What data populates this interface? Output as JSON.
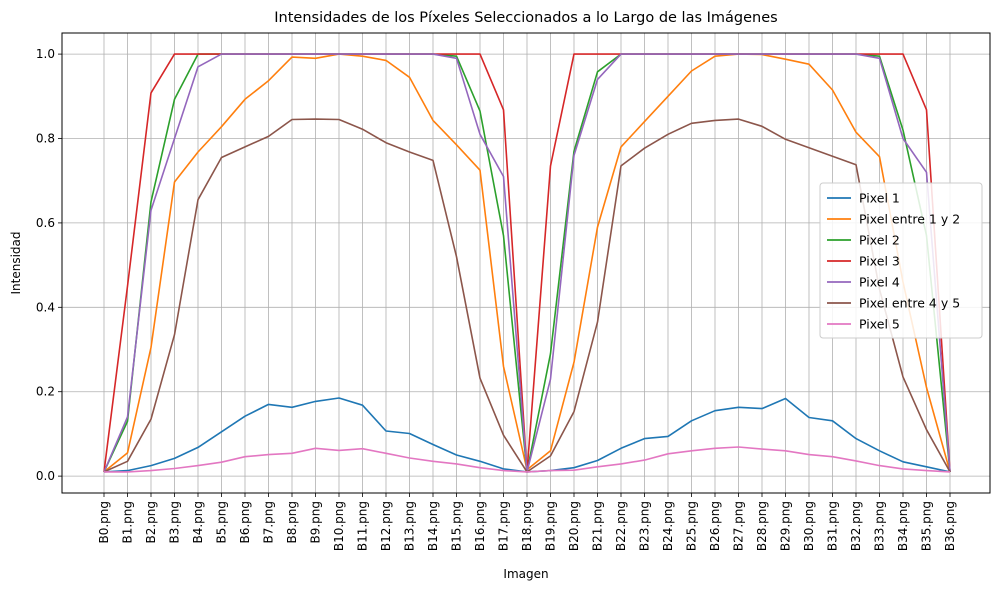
{
  "chart_data": {
    "type": "line",
    "title": "Intensidades de los Píxeles Seleccionados a lo Largo de las Imágenes",
    "xlabel": "Imagen",
    "ylabel": "Intensidad",
    "ylim": [
      -0.04,
      1.05
    ],
    "yticks": [
      "0.0",
      "0.2",
      "0.4",
      "0.6",
      "0.8",
      "1.0"
    ],
    "grid": true,
    "legend_position": "center-right",
    "categories": [
      "B0.png",
      "B1.png",
      "B2.png",
      "B3.png",
      "B4.png",
      "B5.png",
      "B6.png",
      "B7.png",
      "B8.png",
      "B9.png",
      "B10.png",
      "B11.png",
      "B12.png",
      "B13.png",
      "B14.png",
      "B15.png",
      "B16.png",
      "B17.png",
      "B18.png",
      "B19.png",
      "B20.png",
      "B21.png",
      "B22.png",
      "B23.png",
      "B24.png",
      "B25.png",
      "B26.png",
      "B27.png",
      "B28.png",
      "B29.png",
      "B30.png",
      "B31.png",
      "B32.png",
      "B33.png",
      "B34.png",
      "B35.png",
      "B36.png"
    ],
    "series": [
      {
        "name": "Pixel 1",
        "color": "#1f77b4",
        "values": [
          0.01,
          0.013,
          0.025,
          0.042,
          0.068,
          0.105,
          0.142,
          0.17,
          0.163,
          0.177,
          0.185,
          0.168,
          0.107,
          0.101,
          0.075,
          0.05,
          0.035,
          0.017,
          0.01,
          0.013,
          0.02,
          0.037,
          0.066,
          0.089,
          0.094,
          0.131,
          0.155,
          0.163,
          0.16,
          0.184,
          0.139,
          0.131,
          0.089,
          0.06,
          0.034,
          0.022,
          0.01
        ]
      },
      {
        "name": "Pixel entre 1 y 2",
        "color": "#ff7f0e",
        "values": [
          0.01,
          0.055,
          0.305,
          0.697,
          0.768,
          0.828,
          0.893,
          0.937,
          0.993,
          0.99,
          1.0,
          0.995,
          0.985,
          0.945,
          0.843,
          0.785,
          0.725,
          0.26,
          0.015,
          0.06,
          0.27,
          0.59,
          0.78,
          0.84,
          0.9,
          0.96,
          0.995,
          1.0,
          0.999,
          0.988,
          0.976,
          0.915,
          0.815,
          0.757,
          0.46,
          0.21,
          0.01
        ]
      },
      {
        "name": "Pixel 2",
        "color": "#2ca02c",
        "values": [
          0.01,
          0.13,
          0.65,
          0.893,
          1.0,
          1.0,
          1.0,
          1.0,
          1.0,
          1.0,
          1.0,
          1.0,
          1.0,
          1.0,
          1.0,
          0.995,
          0.865,
          0.57,
          0.01,
          0.29,
          0.77,
          0.958,
          1.0,
          1.0,
          1.0,
          1.0,
          1.0,
          1.0,
          1.0,
          1.0,
          1.0,
          1.0,
          1.0,
          0.995,
          0.82,
          0.57,
          0.01
        ]
      },
      {
        "name": "Pixel 3",
        "color": "#d62728",
        "values": [
          0.01,
          0.45,
          0.908,
          1.0,
          1.0,
          1.0,
          1.0,
          1.0,
          1.0,
          1.0,
          1.0,
          1.0,
          1.0,
          1.0,
          1.0,
          1.0,
          1.0,
          0.868,
          0.01,
          0.735,
          1.0,
          1.0,
          1.0,
          1.0,
          1.0,
          1.0,
          1.0,
          1.0,
          1.0,
          1.0,
          1.0,
          1.0,
          1.0,
          1.0,
          1.0,
          0.868,
          0.01
        ]
      },
      {
        "name": "Pixel 4",
        "color": "#9467bd",
        "values": [
          0.01,
          0.14,
          0.63,
          0.8,
          0.97,
          1.0,
          1.0,
          1.0,
          1.0,
          1.0,
          1.0,
          1.0,
          1.0,
          1.0,
          1.0,
          0.99,
          0.81,
          0.71,
          0.01,
          0.23,
          0.76,
          0.94,
          1.0,
          1.0,
          1.0,
          1.0,
          1.0,
          1.0,
          1.0,
          1.0,
          1.0,
          1.0,
          1.0,
          0.99,
          0.8,
          0.72,
          0.01
        ]
      },
      {
        "name": "Pixel entre 4 y 5",
        "color": "#8c564b",
        "values": [
          0.01,
          0.035,
          0.135,
          0.335,
          0.655,
          0.755,
          0.78,
          0.805,
          0.845,
          0.846,
          0.845,
          0.822,
          0.79,
          0.768,
          0.748,
          0.52,
          0.232,
          0.097,
          0.01,
          0.048,
          0.153,
          0.365,
          0.735,
          0.777,
          0.81,
          0.836,
          0.843,
          0.846,
          0.829,
          0.798,
          0.778,
          0.758,
          0.738,
          0.443,
          0.235,
          0.11,
          0.01
        ]
      },
      {
        "name": "Pixel 5",
        "color": "#e377c2",
        "values": [
          0.01,
          0.01,
          0.013,
          0.018,
          0.025,
          0.033,
          0.046,
          0.051,
          0.054,
          0.066,
          0.061,
          0.065,
          0.054,
          0.043,
          0.035,
          0.029,
          0.02,
          0.013,
          0.01,
          0.013,
          0.014,
          0.022,
          0.029,
          0.038,
          0.053,
          0.06,
          0.066,
          0.069,
          0.064,
          0.06,
          0.051,
          0.046,
          0.036,
          0.025,
          0.017,
          0.013,
          0.01
        ]
      }
    ]
  }
}
